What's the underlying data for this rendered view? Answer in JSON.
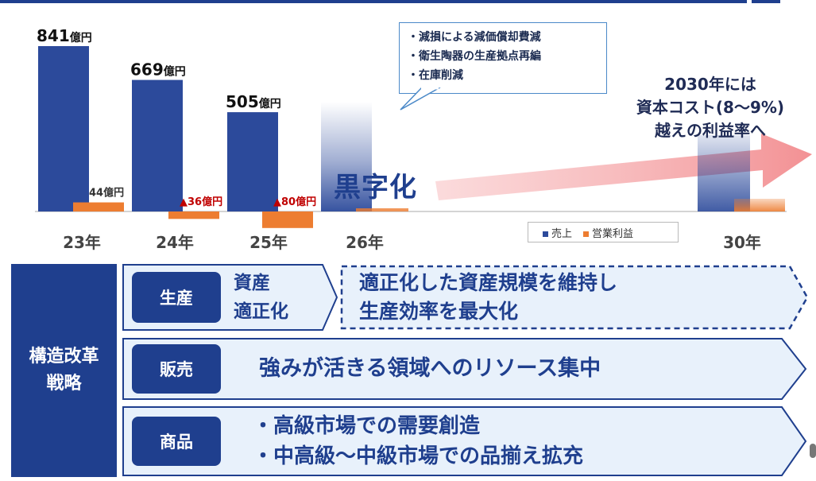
{
  "chart_data": {
    "type": "bar",
    "categories": [
      "23年",
      "24年",
      "25年",
      "26年",
      "30年"
    ],
    "series": [
      {
        "name": "売上",
        "values": [
          841,
          669,
          505,
          null,
          null
        ],
        "labels": [
          "841",
          "669",
          "505",
          "",
          ""
        ],
        "unit": "億円",
        "color": "#2c4a9b"
      },
      {
        "name": "営業利益",
        "values": [
          44,
          -36,
          -80,
          null,
          null
        ],
        "labels": [
          "44",
          "▲36",
          "▲80",
          "",
          ""
        ],
        "unit": "億円",
        "color": "#ed7d31"
      }
    ],
    "legend_position": "bottom-right",
    "grid": false
  },
  "chart": {
    "callout": [
      "・減損による減価償却費減",
      "・衛生陶器の生産拠点再編",
      "・在庫削減"
    ],
    "target_lines": [
      "2030年には",
      "資本コスト(8〜9%)",
      "越えの利益率へ"
    ],
    "black_turn": "黒字化",
    "legend": {
      "sales": "売上",
      "op_profit": "営業利益"
    }
  },
  "strategy": {
    "title_line1": "構造改革",
    "title_line2": "戦略",
    "rows": [
      {
        "tag": "生産",
        "sub1": "資産",
        "sub2": "適正化",
        "text1": "適正化した資産規模を維持し",
        "text2": "生産効率を最大化"
      },
      {
        "tag": "販売",
        "text1": "強みが活きる領域へのリソース集中"
      },
      {
        "tag": "商品",
        "text1": "・高級市場での需要創造",
        "text2": "・中高級〜中級市場での品揃え拡充"
      }
    ]
  },
  "colors": {
    "navy": "#1f3f8e",
    "bar_blue": "#2c4a9b",
    "orange": "#ed7d31",
    "arrow_pink": "#f4a6a8",
    "row_fill": "#e8f1fb"
  }
}
